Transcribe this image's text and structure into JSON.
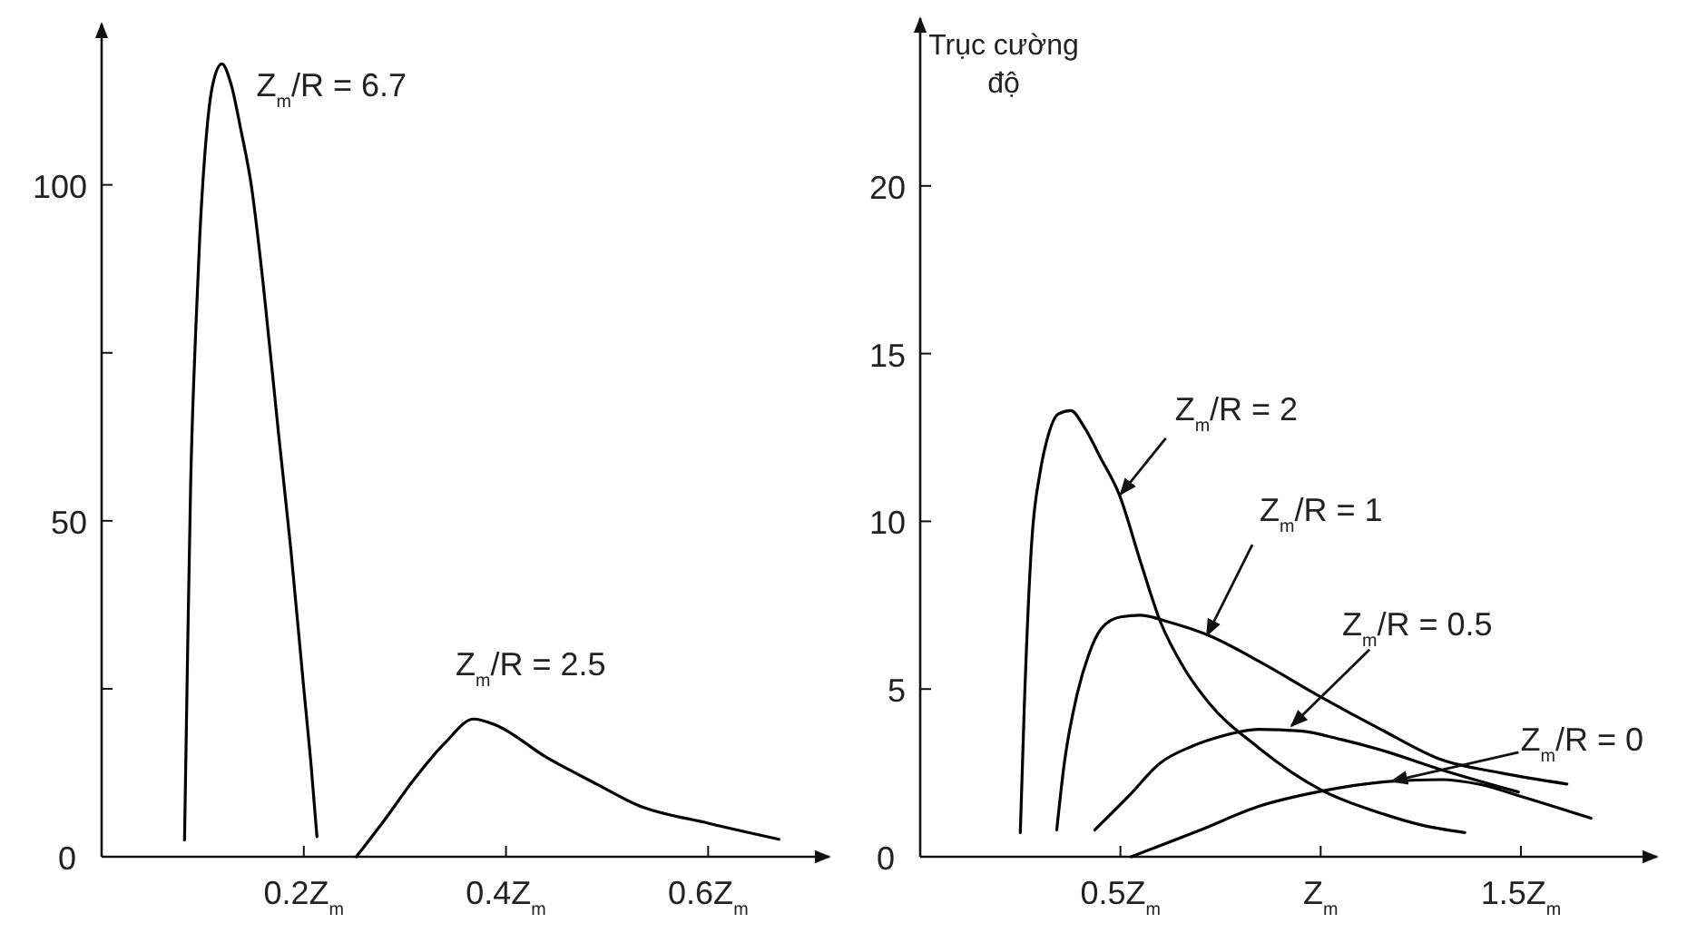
{
  "chart_data": [
    {
      "type": "line",
      "xlim": [
        0,
        0.72
      ],
      "ylim": [
        0,
        124
      ],
      "xticks": [
        {
          "value": 0.2,
          "label": "0.2Z$_{m}$"
        },
        {
          "value": 0.4,
          "label": "0.4Z$_{m}$"
        },
        {
          "value": 0.6,
          "label": "0.6Z$_{m}$"
        }
      ],
      "yticks": [
        0,
        {
          "value": 25,
          "label": null
        },
        50,
        {
          "value": 75,
          "label": null
        },
        100
      ],
      "series": [
        {
          "color": "#000000",
          "x": [
            0.082,
            0.085,
            0.088,
            0.093,
            0.097,
            0.104,
            0.11,
            0.119,
            0.128,
            0.138,
            0.148,
            0.16,
            0.175,
            0.187,
            0.2,
            0.207,
            0.213
          ],
          "values": [
            2.5,
            30,
            55,
            78,
            92,
            108,
            115,
            118,
            115,
            108,
            100,
            85,
            63,
            46,
            25,
            14,
            3
          ]
        },
        {
          "color": "#000000",
          "x": [
            0.252,
            0.28,
            0.308,
            0.34,
            0.368,
            0.39,
            0.44,
            0.49,
            0.53,
            0.6,
            0.67
          ],
          "values": [
            0,
            5.5,
            11.3,
            17,
            20.5,
            19.6,
            14.8,
            10.8,
            7.7,
            5,
            2.6
          ]
        }
      ],
      "annotations": [
        {
          "text": "Z$_{m}$/R = 6.7",
          "x": 0.119,
          "y": 118
        },
        {
          "text": "Z$_{m}$/R = 2.5",
          "x": 0.368,
          "y": 20.5
        }
      ]
    },
    {
      "type": "line",
      "xlim": [
        0,
        1.84
      ],
      "ylim": [
        0,
        25
      ],
      "ylabel": "Trục cường độ",
      "xticks": [
        {
          "value": 0.5,
          "label": "0.5Z$_{m}$"
        },
        {
          "value": 1,
          "label": "Z$_{m}$"
        },
        {
          "value": 1.5,
          "label": "1.5Z$_{m}$"
        }
      ],
      "yticks": [
        0,
        5,
        10,
        15,
        20
      ],
      "series": [
        {
          "color": "#000000",
          "x": [
            0.25,
            0.26,
            0.278,
            0.3,
            0.316,
            0.345,
            0.376,
            0.41,
            0.45,
            0.497,
            0.55,
            0.6,
            0.66,
            0.72,
            0.845,
            1.0,
            1.15,
            1.25,
            1.36
          ],
          "values": [
            0.72,
            4.5,
            9.3,
            11.5,
            12.4,
            13.2,
            13.3,
            12.8,
            11.9,
            10.8,
            8.8,
            7,
            5.6,
            4.6,
            3.25,
            2.0,
            1.3,
            0.95,
            0.72
          ]
        },
        {
          "color": "#000000",
          "x": [
            0.341,
            0.36,
            0.391,
            0.42,
            0.452,
            0.5,
            0.55,
            0.62,
            0.72,
            0.85,
            0.995,
            1.15,
            1.3,
            1.45,
            1.615
          ],
          "values": [
            0.8,
            2.8,
            4.8,
            6.0,
            6.8,
            7.15,
            7.2,
            7.0,
            6.6,
            5.8,
            4.8,
            3.8,
            2.9,
            2.5,
            2.17
          ]
        },
        {
          "color": "#000000",
          "x": [
            0.436,
            0.52,
            0.6,
            0.68,
            0.754,
            0.845,
            0.95,
            1.05,
            1.146,
            1.3,
            1.494
          ],
          "values": [
            0.8,
            1.8,
            2.8,
            3.3,
            3.6,
            3.8,
            3.75,
            3.5,
            3.2,
            2.6,
            1.93
          ]
        },
        {
          "color": "#000000",
          "x": [
            0.527,
            0.7,
            0.845,
            1.0,
            1.177,
            1.3,
            1.4,
            1.5,
            1.675
          ],
          "values": [
            0,
            0.8,
            1.5,
            1.95,
            2.25,
            2.3,
            2.15,
            1.8,
            1.15
          ]
        }
      ],
      "annotations": [
        {
          "text": "Z$_{m}$/R = 2",
          "x": 0.5,
          "y": 10.8
        },
        {
          "text": "Z$_{m}$/R = 1",
          "x": 0.716,
          "y": 6.6
        },
        {
          "text": "Z$_{m}$/R = 0.5",
          "x": 0.927,
          "y": 3.9
        },
        {
          "text": "Z$_{m}$/R = 0",
          "x": 1.177,
          "y": 2.25
        }
      ]
    }
  ]
}
